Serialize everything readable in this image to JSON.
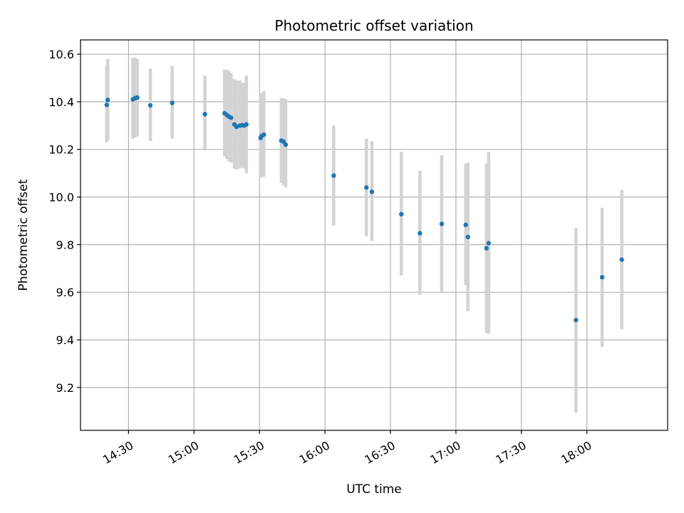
{
  "chart_data": {
    "type": "scatter",
    "title": "Photometric offset variation",
    "xlabel": "UTC time",
    "ylabel": "Photometric offset",
    "xlim": [
      "14:08",
      "18:37"
    ],
    "ylim": [
      9.02,
      10.66
    ],
    "x_ticks": [
      "14:30",
      "15:00",
      "15:30",
      "16:00",
      "16:30",
      "17:00",
      "17:30",
      "18:00"
    ],
    "y_ticks": [
      "9.2",
      "9.4",
      "9.6",
      "9.8",
      "10.0",
      "10.2",
      "10.4",
      "10.6"
    ],
    "grid": true,
    "colors": {
      "points": "#1f77b4",
      "error_bars": "#d3d3d3"
    },
    "points": [
      {
        "time": "14:20",
        "y": 10.387,
        "lo": 10.23,
        "hi": 10.55
      },
      {
        "time": "14:20.5",
        "y": 10.408,
        "lo": 10.24,
        "hi": 10.58
      },
      {
        "time": "14:32",
        "y": 10.41,
        "lo": 10.245,
        "hi": 10.585
      },
      {
        "time": "14:33",
        "y": 10.415,
        "lo": 10.25,
        "hi": 10.585
      },
      {
        "time": "14:34",
        "y": 10.418,
        "lo": 10.255,
        "hi": 10.58
      },
      {
        "time": "14:40",
        "y": 10.385,
        "lo": 10.235,
        "hi": 10.54
      },
      {
        "time": "14:50",
        "y": 10.395,
        "lo": 10.245,
        "hi": 10.55
      },
      {
        "time": "15:05",
        "y": 10.348,
        "lo": 10.195,
        "hi": 10.51
      },
      {
        "time": "15:14",
        "y": 10.352,
        "lo": 10.17,
        "hi": 10.535
      },
      {
        "time": "15:15",
        "y": 10.345,
        "lo": 10.16,
        "hi": 10.535
      },
      {
        "time": "15:16",
        "y": 10.338,
        "lo": 10.15,
        "hi": 10.53
      },
      {
        "time": "15:17",
        "y": 10.333,
        "lo": 10.145,
        "hi": 10.52
      },
      {
        "time": "15:18.5",
        "y": 10.305,
        "lo": 10.12,
        "hi": 10.495
      },
      {
        "time": "15:19.5",
        "y": 10.295,
        "lo": 10.115,
        "hi": 10.49
      },
      {
        "time": "15:21",
        "y": 10.3,
        "lo": 10.12,
        "hi": 10.49
      },
      {
        "time": "15:22",
        "y": 10.302,
        "lo": 10.125,
        "hi": 10.48
      },
      {
        "time": "15:23",
        "y": 10.3,
        "lo": 10.12,
        "hi": 10.48
      },
      {
        "time": "15:24",
        "y": 10.305,
        "lo": 10.1,
        "hi": 10.51
      },
      {
        "time": "15:30.5",
        "y": 10.248,
        "lo": 10.08,
        "hi": 10.43
      },
      {
        "time": "15:31",
        "y": 10.257,
        "lo": 10.085,
        "hi": 10.435
      },
      {
        "time": "15:32",
        "y": 10.262,
        "lo": 10.085,
        "hi": 10.445
      },
      {
        "time": "15:40",
        "y": 10.237,
        "lo": 10.06,
        "hi": 10.415
      },
      {
        "time": "15:41",
        "y": 10.233,
        "lo": 10.05,
        "hi": 10.415
      },
      {
        "time": "15:42",
        "y": 10.22,
        "lo": 10.04,
        "hi": 10.41
      },
      {
        "time": "16:04",
        "y": 10.09,
        "lo": 9.88,
        "hi": 10.3
      },
      {
        "time": "16:19",
        "y": 10.04,
        "lo": 9.835,
        "hi": 10.245
      },
      {
        "time": "16:21.5",
        "y": 10.022,
        "lo": 9.815,
        "hi": 10.235
      },
      {
        "time": "16:35",
        "y": 9.928,
        "lo": 9.67,
        "hi": 10.19
      },
      {
        "time": "16:43.5",
        "y": 9.848,
        "lo": 9.59,
        "hi": 10.11
      },
      {
        "time": "16:53.5",
        "y": 9.887,
        "lo": 9.6,
        "hi": 10.175
      },
      {
        "time": "17:04.5",
        "y": 9.883,
        "lo": 9.63,
        "hi": 10.14
      },
      {
        "time": "17:05.5",
        "y": 9.832,
        "lo": 9.52,
        "hi": 10.145
      },
      {
        "time": "17:14",
        "y": 9.785,
        "lo": 9.43,
        "hi": 10.14
      },
      {
        "time": "17:15",
        "y": 9.806,
        "lo": 9.425,
        "hi": 10.19
      },
      {
        "time": "17:55",
        "y": 9.483,
        "lo": 9.095,
        "hi": 9.87
      },
      {
        "time": "18:07",
        "y": 9.663,
        "lo": 9.37,
        "hi": 9.955
      },
      {
        "time": "18:16",
        "y": 9.737,
        "lo": 9.445,
        "hi": 10.03
      }
    ]
  }
}
